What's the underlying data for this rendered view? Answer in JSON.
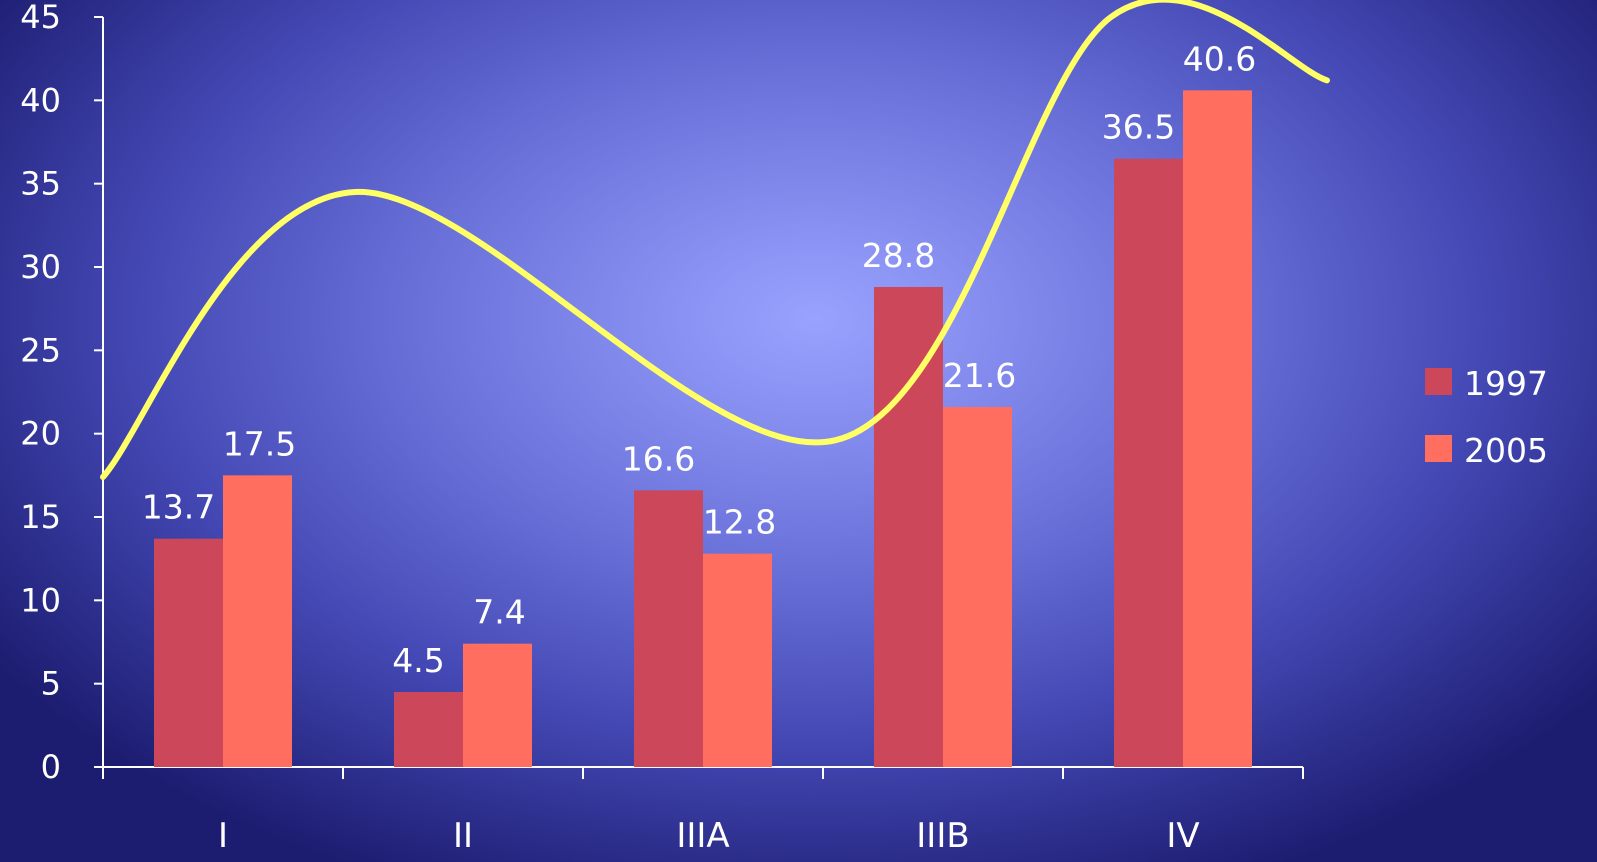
{
  "chart_data": {
    "type": "bar",
    "categories": [
      "I",
      "II",
      "IIIA",
      "IIIB",
      "IV"
    ],
    "series": [
      {
        "name": "1997",
        "values": [
          13.7,
          4.5,
          16.6,
          28.8,
          36.5
        ],
        "labels": [
          "13.7",
          "4.5",
          "16.6",
          "28.8",
          "36.5"
        ],
        "color": "#cc4759"
      },
      {
        "name": "2005",
        "values": [
          17.5,
          7.4,
          12.8,
          21.6,
          40.6
        ],
        "labels": [
          "17.5",
          "7.4",
          "12.8",
          "21.6",
          "40.6"
        ],
        "color": "#ff6e5f"
      }
    ],
    "ylim": [
      0,
      45
    ],
    "yticks": [
      "0",
      "5",
      "10",
      "15",
      "20",
      "25",
      "30",
      "35",
      "40",
      "45"
    ],
    "xlabel": "",
    "ylabel": "",
    "legend_position": "right",
    "grid": false,
    "overlay_curve": {
      "color": "#ffff66",
      "points": [
        {
          "x": -0.5,
          "y": 17.4
        },
        {
          "x": 0.55,
          "y": 34.5
        },
        {
          "x": 2.55,
          "y": 19.6
        },
        {
          "x": 3.7,
          "y": 45
        },
        {
          "x": 4.6,
          "y": 41.2
        }
      ]
    }
  },
  "colors": {
    "axis": "#ffffff",
    "text": "#ffffff"
  }
}
